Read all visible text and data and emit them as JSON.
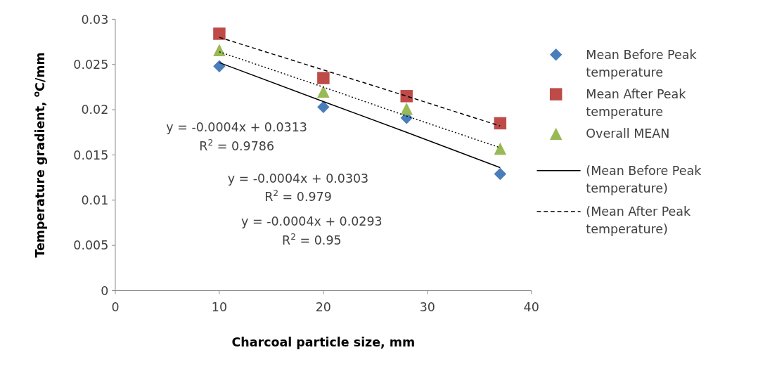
{
  "chart_data": {
    "type": "scatter",
    "xlabel": "Charcoal particle size, mm",
    "ylabel": "Temperature gradient, $^{o}$C/mm",
    "xlim": [
      0,
      40
    ],
    "xticks": [
      0,
      10,
      20,
      30,
      40
    ],
    "ylim": [
      0,
      0.03
    ],
    "yticks": [
      0,
      0.005,
      0.01,
      0.015,
      0.02,
      0.025,
      0.03
    ],
    "grid": false,
    "legend": "right",
    "x": [
      10,
      20,
      28,
      37
    ],
    "series": [
      {
        "name": "Mean Before Peak temperature",
        "color": "#4a7ebb",
        "marker": "diamond",
        "values": [
          0.0248,
          0.0203,
          0.0191,
          0.0129
        ]
      },
      {
        "name": "Mean After Peak temperature",
        "color": "#be4b48",
        "marker": "square",
        "values": [
          0.0284,
          0.0235,
          0.0215,
          0.0185
        ]
      },
      {
        "name": "Overall MEAN",
        "color": "#98b954",
        "marker": "triangle",
        "values": [
          0.0266,
          0.022,
          0.0201,
          0.0157
        ]
      },
      {
        "name": "(Mean Before Peak temperature)",
        "type": "line",
        "color": "#000000",
        "line_style": "solid",
        "marker": "none",
        "values": [
          0.0252,
          0.0209,
          0.0175,
          0.0136
        ]
      },
      {
        "name": "(Mean After Peak temperature)",
        "type": "line",
        "color": "#000000",
        "line_style": "dashed",
        "marker": "none",
        "values": [
          0.028,
          0.0244,
          0.0215,
          0.0182
        ]
      },
      {
        "type": "line",
        "color": "#000000",
        "line_style": "dotted",
        "marker": "none",
        "values": [
          0.0264,
          0.0225,
          0.0193,
          0.0158
        ]
      }
    ],
    "annotations": [
      "y = -0.0004x + 0.0313",
      "R$^{2}$ = 0.9786",
      "y = -0.0004x + 0.0303",
      "R$^{2}$ = 0.979",
      "y = -0.0004x + 0.0293",
      "R$^{2}$ = 0.95"
    ]
  }
}
